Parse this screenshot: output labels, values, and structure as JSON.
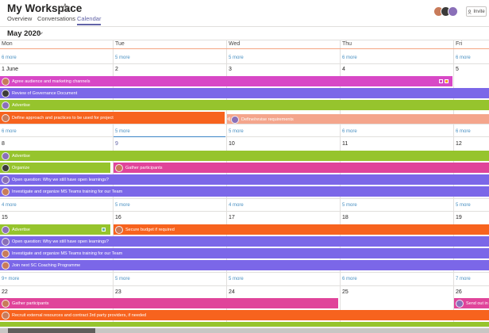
{
  "header": {
    "title": "My Workspace",
    "tabs": [
      {
        "label": "Overview",
        "active": false
      },
      {
        "label": "Conversations",
        "active": false
      },
      {
        "label": "Calendar",
        "active": true
      }
    ],
    "invite_label": "Invite",
    "star_icon": "star-outline-icon"
  },
  "calendar": {
    "month": "May 2020",
    "days": [
      "Mon",
      "Tue",
      "Wed",
      "Thu",
      "Fri"
    ],
    "weeks": [
      {
        "more": [
          "6 more",
          "5 more",
          "5 more",
          "6 more",
          "6 more"
        ],
        "dates": [
          "1 June",
          "2",
          "3",
          "4",
          "5"
        ]
      },
      {
        "more": [
          "6 more",
          "5 more",
          "5 more",
          "6 more",
          "6 more"
        ],
        "dates": [
          "8",
          "9",
          "10",
          "11",
          "12"
        ]
      },
      {
        "more": [
          "4 more",
          "5 more",
          "4 more",
          "5 more",
          "5 more"
        ],
        "dates": [
          "15",
          "16",
          "17",
          "18",
          "19"
        ]
      },
      {
        "more": [
          "9+ more",
          "5 more",
          "5 more",
          "6 more",
          "7 more"
        ],
        "dates": [
          "22",
          "23",
          "24",
          "25",
          "26"
        ]
      }
    ],
    "events": {
      "agree_audience": "Agree audience and marketing channels",
      "review_governance": "Review of Governance Document",
      "advertise": "Advertise",
      "define_approach": "Define approach and practices to be used for project",
      "define_fin": "Define/revise requirements",
      "organize": "Organize",
      "gather_participants": "Gather participants",
      "open_question": "Open question: Why we still have open learnings?",
      "investigate_teams": "Investigate and organize MS Teams training for our Team",
      "secure_budget": "Secure budget if required",
      "join_coaching": "Join next SC Coaching Programme",
      "recruit_external": "Recruit external resources and contract 3rd party providers, if needed",
      "send_out": "Send out in"
    }
  },
  "colors": {
    "accent": "#6264a7",
    "magenta": "#d848c6",
    "purple": "#7b67e8",
    "green": "#96c42d",
    "orange": "#f7631e",
    "salmon": "#f4a58c",
    "pink": "#e0449a",
    "link": "#4a90c2"
  }
}
